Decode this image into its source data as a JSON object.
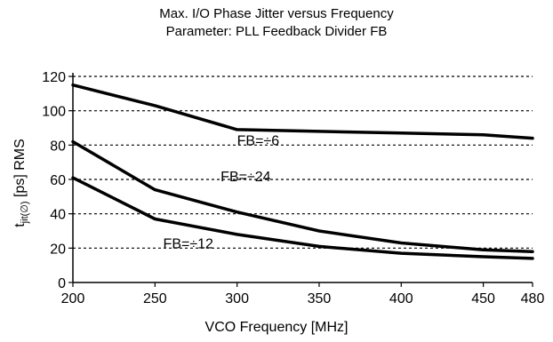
{
  "chart_data": {
    "type": "line",
    "title": "Max. I/O Phase Jitter versus Frequency",
    "subtitle": "Parameter: PLL Feedback Divider FB",
    "xlabel": "VCO Frequency [MHz]",
    "ylabel": {
      "main": "t",
      "subscript": "jit(∅)",
      "suffix": " [ps] RMS"
    },
    "xlim": [
      200,
      480
    ],
    "ylim": [
      0,
      120
    ],
    "x_ticks": [
      200,
      250,
      300,
      350,
      400,
      450,
      480
    ],
    "y_ticks": [
      0,
      20,
      40,
      60,
      80,
      100,
      120
    ],
    "grid": "horizontal-dashed",
    "series": [
      {
        "name": "FB=÷6",
        "x": [
          200,
          250,
          300,
          350,
          400,
          450,
          480
        ],
        "y": [
          115,
          103,
          89,
          88,
          87,
          86,
          84
        ]
      },
      {
        "name": "FB=÷24",
        "x": [
          200,
          250,
          300,
          350,
          400,
          450,
          480
        ],
        "y": [
          82,
          54,
          41,
          30,
          23,
          19,
          18
        ]
      },
      {
        "name": "FB=÷12",
        "x": [
          200,
          250,
          300,
          350,
          400,
          450,
          480
        ],
        "y": [
          61,
          37,
          28,
          21,
          17,
          15,
          14
        ]
      }
    ],
    "label_positions": [
      {
        "series": "FB=÷6",
        "x": 300,
        "y": 80
      },
      {
        "series": "FB=÷24",
        "x": 290,
        "y": 59
      },
      {
        "series": "FB=÷12",
        "x": 255,
        "y": 20
      }
    ]
  }
}
